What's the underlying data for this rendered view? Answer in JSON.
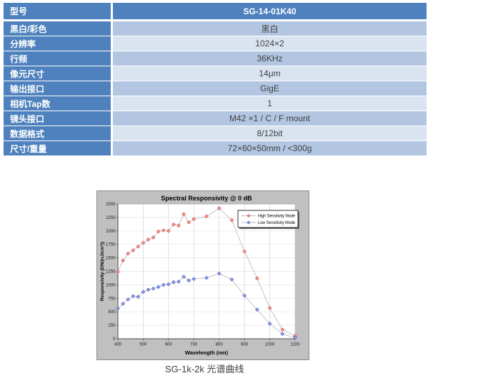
{
  "table": {
    "rows": [
      {
        "label": "型号",
        "value": "SG-14-01K40",
        "header": true
      },
      {
        "label": "黑白/彩色",
        "value": "黑白"
      },
      {
        "label": "分辨率",
        "value": "1024×2"
      },
      {
        "label": "行频",
        "value": "36KHz"
      },
      {
        "label": "像元尺寸",
        "value": "14μm"
      },
      {
        "label": "输出接口",
        "value": "GigE"
      },
      {
        "label": "相机Tap数",
        "value": "1"
      },
      {
        "label": "镜头接口",
        "value": "M42 ×1 / C / F mount"
      },
      {
        "label": "数据格式",
        "value": "8/12bit"
      },
      {
        "label": "尺寸/重量",
        "value": "72×60×50mm / <300g"
      }
    ],
    "colors": {
      "header_bg": "#4E81BD",
      "label_bg": "#4E81BD",
      "band_dark": "#B2C6E2",
      "band_light": "#DAE4F1"
    }
  },
  "chart_data": {
    "type": "line",
    "title": "Spectral Responsivity @ 0 dB",
    "xlabel": "Wavelength (nm)",
    "ylabel": "Responsivity (DN/(nJ/cm²))",
    "xlim": [
      400,
      1100
    ],
    "ylim": [
      0,
      2500
    ],
    "x_ticks": [
      400,
      500,
      600,
      700,
      800,
      900,
      1000,
      1100
    ],
    "y_ticks": [
      0,
      250,
      500,
      750,
      1000,
      1250,
      1500,
      1750,
      2000,
      2250,
      2500
    ],
    "grid": true,
    "legend_position": "top-right",
    "x": [
      400,
      420,
      440,
      460,
      480,
      500,
      520,
      540,
      560,
      580,
      600,
      620,
      640,
      660,
      680,
      700,
      750,
      800,
      850,
      900,
      950,
      1000,
      1050,
      1100
    ],
    "series": [
      {
        "name": "High Sensitivity Mode",
        "color": "#D85454",
        "fill": "#F3B0B0",
        "values": [
          1240,
          1450,
          1580,
          1640,
          1710,
          1780,
          1840,
          1880,
          1990,
          2010,
          2000,
          2120,
          2100,
          2310,
          2160,
          2220,
          2270,
          2420,
          2200,
          1620,
          1120,
          570,
          170,
          50
        ]
      },
      {
        "name": "Low Sensitivity Mode",
        "color": "#5160CE",
        "fill": "#AEB5EC",
        "values": [
          560,
          650,
          730,
          790,
          780,
          870,
          910,
          930,
          960,
          1000,
          1010,
          1050,
          1060,
          1150,
          1080,
          1110,
          1130,
          1210,
          1100,
          800,
          540,
          280,
          90,
          20
        ]
      }
    ]
  },
  "caption": "SG-1k-2k 光谱曲线"
}
